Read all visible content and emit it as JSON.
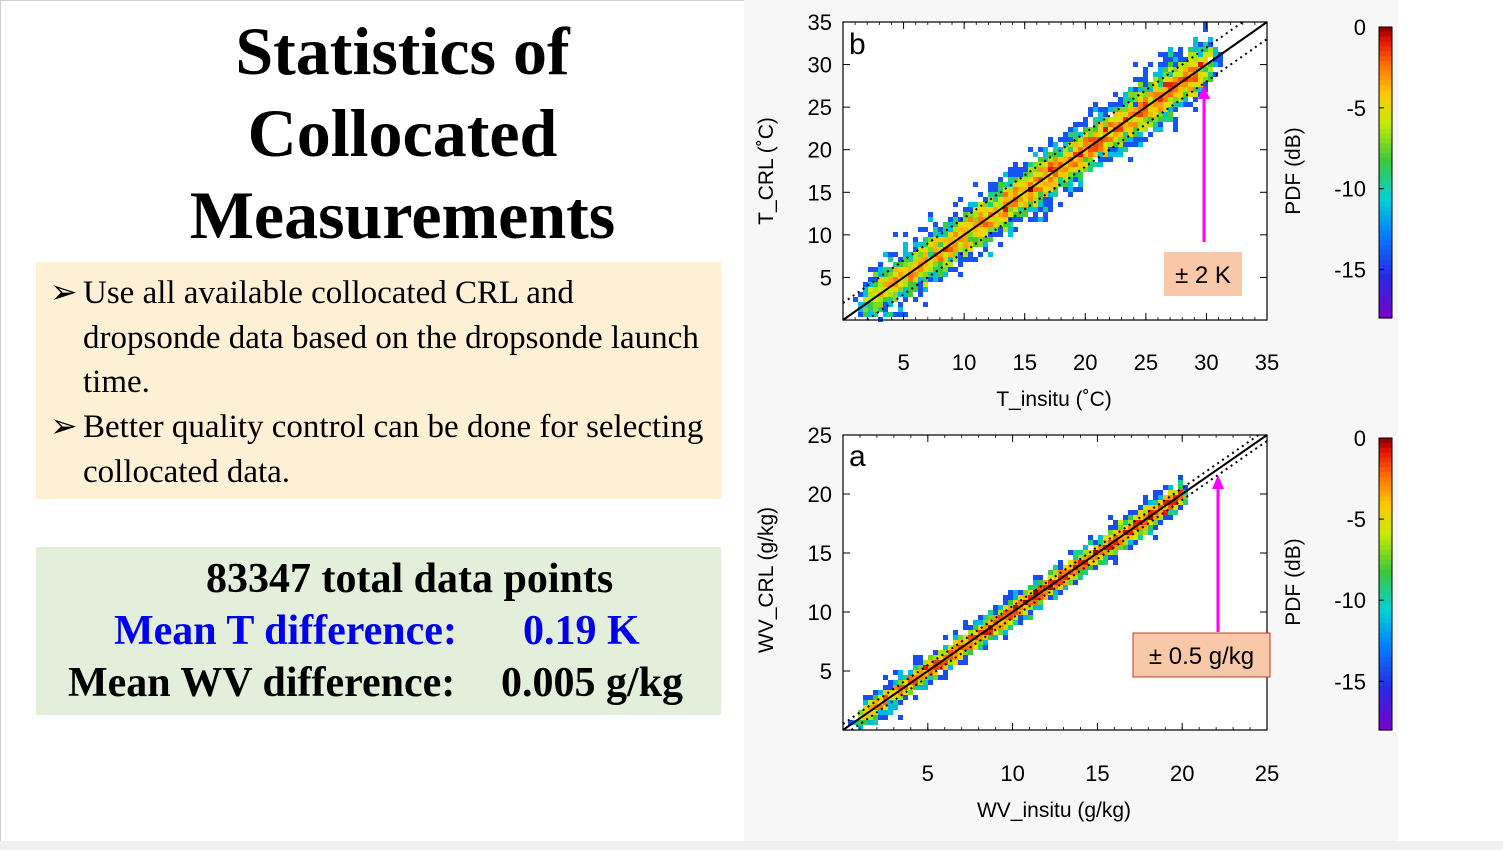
{
  "slide": {
    "title_lines": [
      "Statistics of",
      "Collocated",
      "Measurements"
    ],
    "bullets": [
      {
        "marker": "➢",
        "text": "Use all available collocated CRL and dropsonde data based on  the dropsonde launch time."
      },
      {
        "marker": "➢",
        "text": "Better quality control can be done for selecting collocated data."
      }
    ],
    "stats": {
      "total_points": "83347 total data points",
      "mean_t_label": "Mean T difference:",
      "mean_t_value": "0.19 K",
      "mean_wv_label": "Mean WV difference:",
      "mean_wv_value": "0.005 g/kg"
    },
    "colors": {
      "bullet_box_bg": "#fdf0d5",
      "stats_box_bg": "#e3eedb",
      "highlight_blue": "#0000ee",
      "annotation_arrow": "#ff00ff",
      "annotation_box_bg": "#f9c8a8"
    }
  },
  "chart_data": [
    {
      "type": "heatmap",
      "panel_label": "b",
      "xlabel": "T_insitu (˚C)",
      "ylabel": "T_CRL (˚C)",
      "xlim": [
        0,
        35
      ],
      "ylim": [
        0,
        35
      ],
      "xticks": [
        "5",
        "10",
        "15",
        "20",
        "25",
        "30",
        "35"
      ],
      "yticks": [
        "5",
        "10",
        "15",
        "20",
        "25",
        "30",
        "35"
      ],
      "one_to_one_line": true,
      "dotted_offset": 2,
      "annotation": "± 2 K",
      "colorbar": {
        "label": "PDF (dB)",
        "ticks": [
          "0",
          "-5",
          "-10",
          "-15"
        ],
        "range": [
          -18,
          0
        ]
      },
      "density_centerline": [
        [
          2,
          2
        ],
        [
          30,
          30
        ]
      ],
      "density_spread": 2.5
    },
    {
      "type": "heatmap",
      "panel_label": "a",
      "xlabel": "WV_insitu (g/kg)",
      "ylabel": "WV_CRL (g/kg)",
      "xlim": [
        0,
        25
      ],
      "ylim": [
        0,
        25
      ],
      "xticks": [
        "5",
        "10",
        "15",
        "20",
        "25"
      ],
      "yticks": [
        "5",
        "10",
        "15",
        "20",
        "25"
      ],
      "one_to_one_line": true,
      "dotted_offset": 0.5,
      "annotation": "± 0.5 g/kg",
      "colorbar": {
        "label": "PDF (dB)",
        "ticks": [
          "0",
          "-5",
          "-10",
          "-15"
        ],
        "range": [
          -18,
          0
        ]
      },
      "density_centerline": [
        [
          1,
          1
        ],
        [
          20,
          20
        ]
      ],
      "density_spread": 0.9
    }
  ]
}
